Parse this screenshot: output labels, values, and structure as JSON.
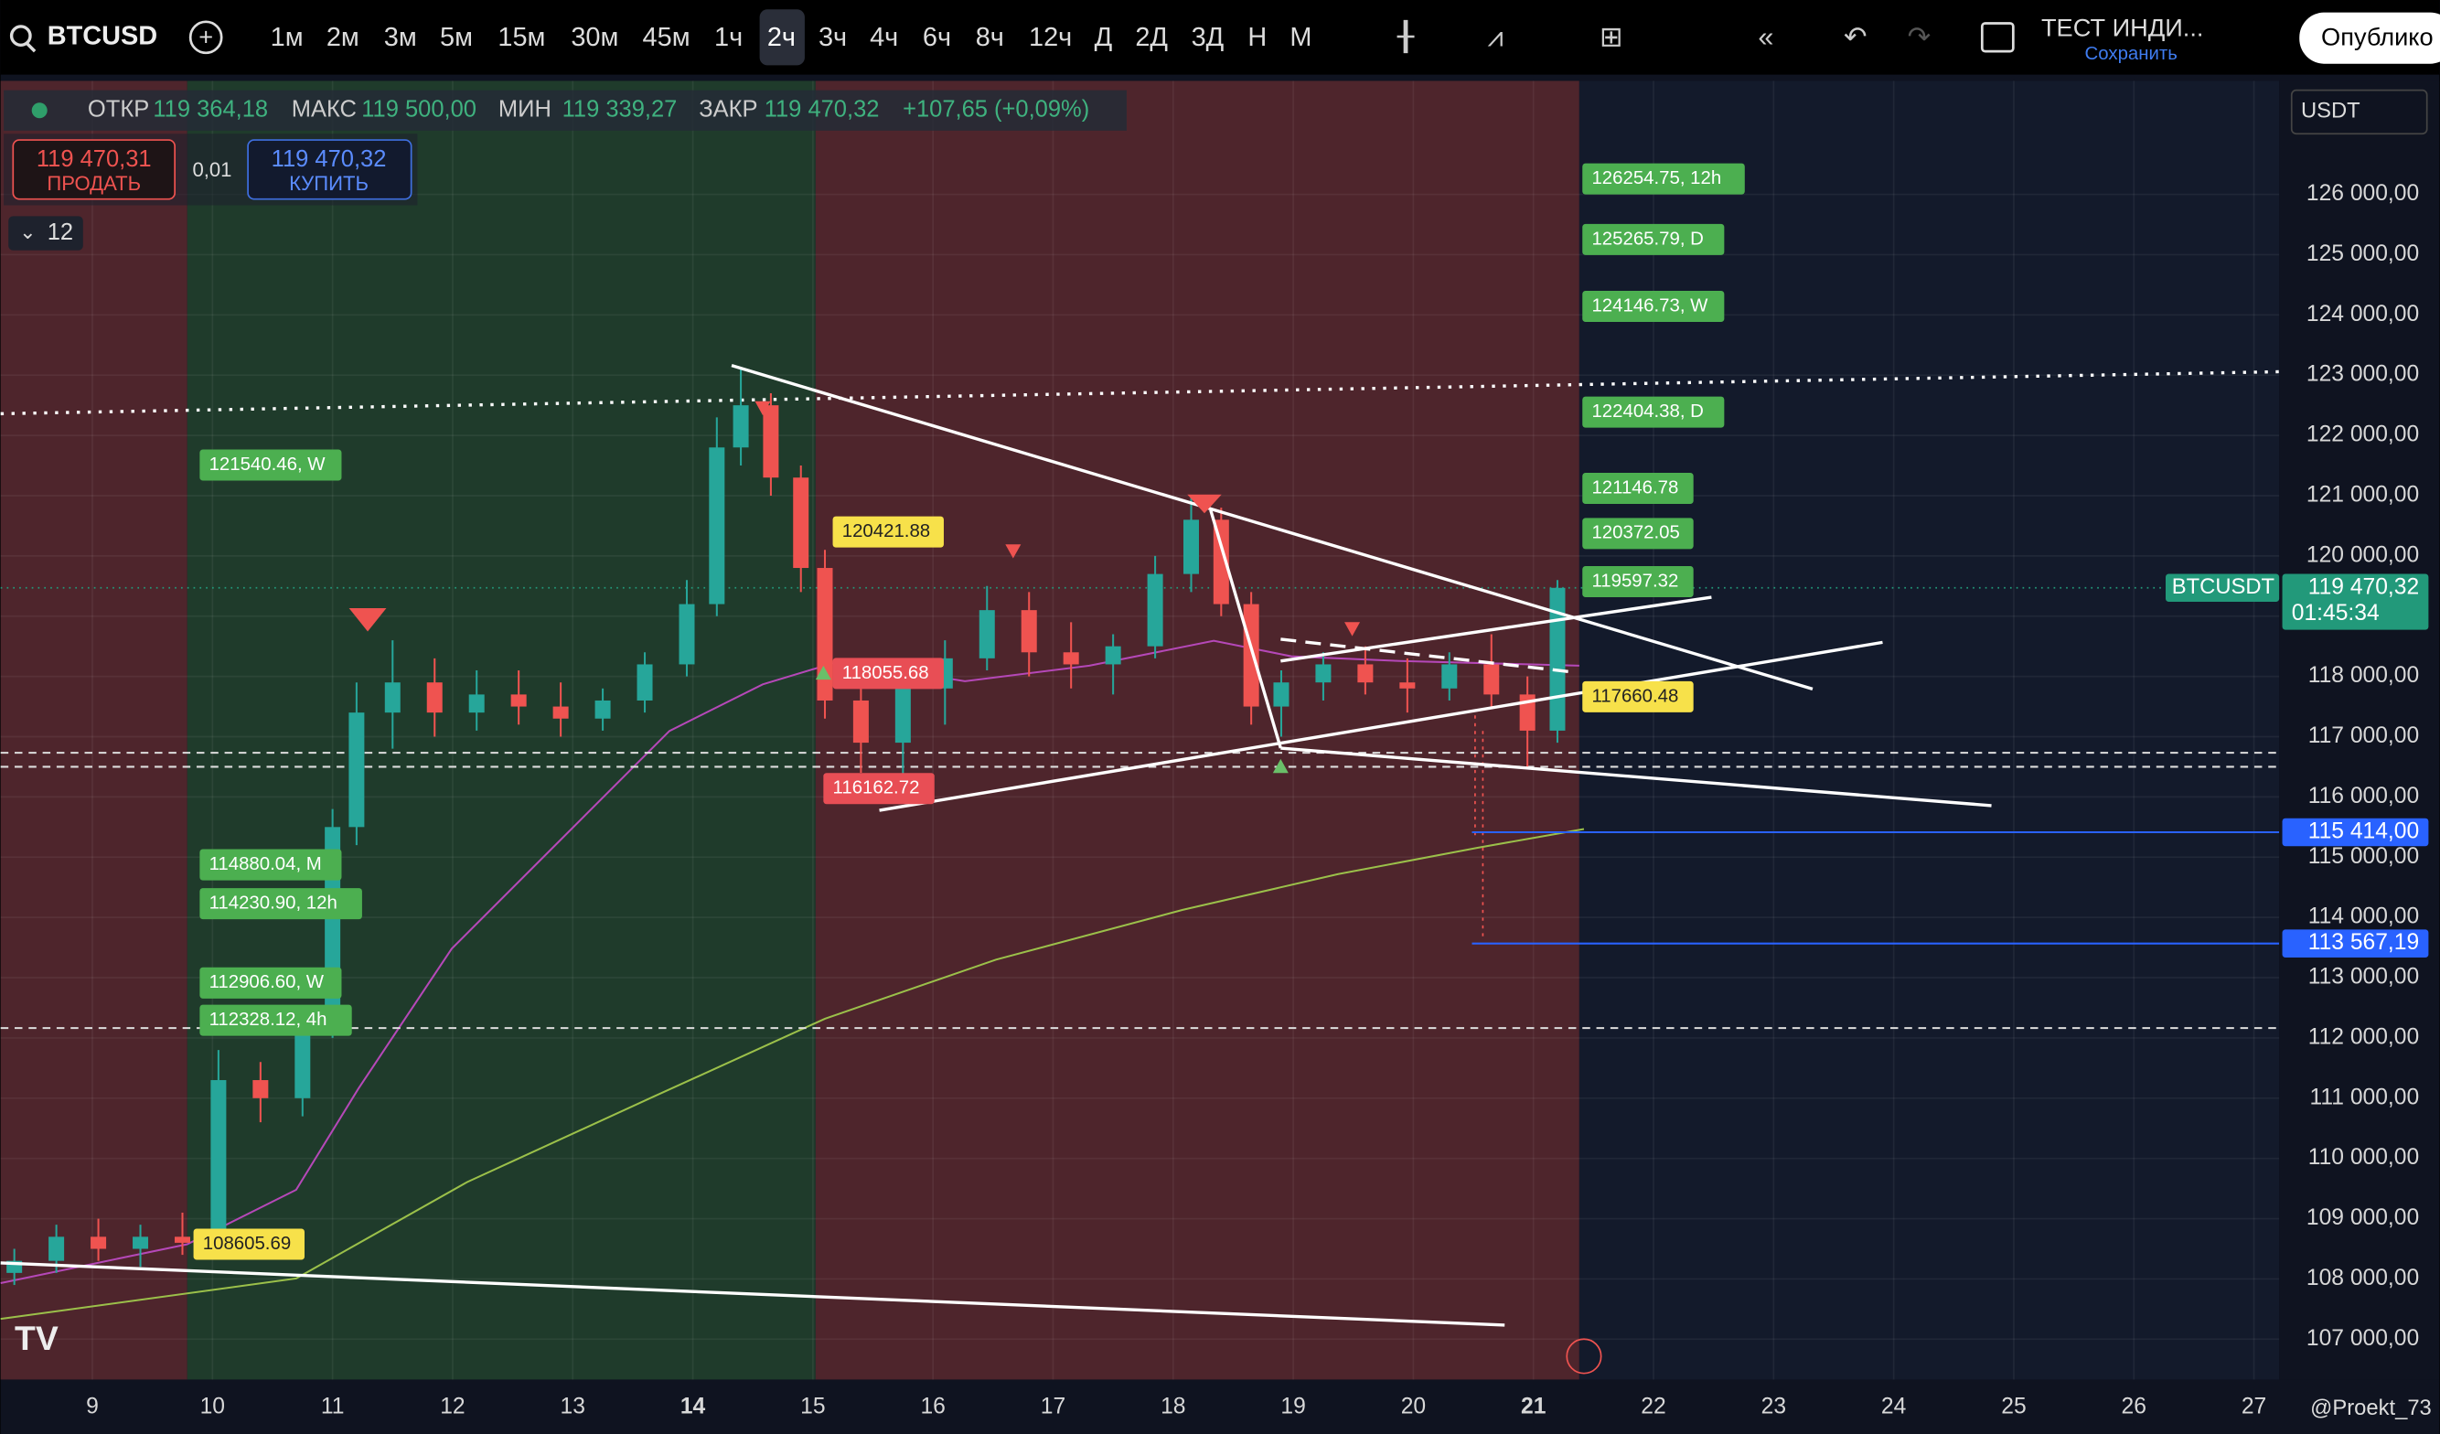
{
  "toolbar": {
    "symbol": "BTCUSD",
    "intervals": [
      "1м",
      "2м",
      "3м",
      "5м",
      "15м",
      "30м",
      "45м",
      "1ч",
      "2ч",
      "3ч",
      "4ч",
      "6ч",
      "8ч",
      "12ч",
      "Д",
      "2Д",
      "3Д",
      "Н",
      "М"
    ],
    "layout_name": "ТЕСТ ИНДИ...",
    "save": "Сохранить",
    "publish": "Опублико"
  },
  "legend": {
    "open_label": "ОТКР",
    "open": "119 364,18",
    "high_label": "МАКС",
    "high": "119 500,00",
    "low_label": "МИН",
    "low": "119 339,27",
    "close_label": "ЗАКР",
    "close": "119 470,32",
    "change": "+107,65 (+0,09%)"
  },
  "trade": {
    "sell_price": "119 470,31",
    "sell": "ПРОДАТЬ",
    "spread": "0,01",
    "buy_price": "119 470,32",
    "buy": "КУПИТЬ"
  },
  "indicator_count": "12",
  "currency": "USDT",
  "price_labels": [
    "126254.75, 12h",
    "125265.79, D",
    "124146.73, W",
    "122404.38, D",
    "121146.78",
    "120372.05",
    "119597.32",
    "117660.48",
    "121540.46, W",
    "120421.88",
    "118055.68",
    "116162.72",
    "114880.04, M",
    "114230.90, 12h",
    "112906.60, W",
    "112328.12, 4h",
    "108605.69"
  ],
  "watermark": "@Proekt_73",
  "chart_data": {
    "type": "candlestick",
    "up_color": "#26a69a",
    "down_color": "#ef5350",
    "x": [
      8.35,
      8.7,
      9.05,
      9.4,
      9.75,
      10.05,
      10.4,
      10.75,
      11.0,
      11.2,
      11.5,
      11.85,
      12.2,
      12.55,
      12.9,
      13.25,
      13.6,
      13.95,
      14.2,
      14.4,
      14.65,
      14.9,
      15.1,
      15.4,
      15.75,
      16.1,
      16.45,
      16.8,
      17.15,
      17.5,
      17.85,
      18.15,
      18.4,
      18.65,
      18.9,
      19.25,
      19.6,
      19.95,
      20.3,
      20.65,
      20.95,
      21.2
    ],
    "open": [
      108100,
      108300,
      108700,
      108500,
      108700,
      108600,
      111300,
      111000,
      112200,
      115500,
      117400,
      117900,
      117400,
      117700,
      117500,
      117300,
      117600,
      118200,
      119200,
      121800,
      122500,
      121300,
      119800,
      117600,
      116900,
      117800,
      118300,
      119100,
      118400,
      118200,
      118500,
      119700,
      120600,
      119200,
      117500,
      117900,
      118200,
      117900,
      117800,
      118200,
      117700,
      117100
    ],
    "high": [
      108500,
      108900,
      109000,
      108900,
      109100,
      111800,
      111600,
      112500,
      115800,
      117900,
      118600,
      118300,
      118100,
      118100,
      117900,
      117800,
      118400,
      119600,
      122300,
      123100,
      122700,
      121500,
      120100,
      118300,
      118200,
      118600,
      119500,
      119400,
      118900,
      118700,
      120000,
      121000,
      120800,
      119400,
      118100,
      118400,
      118500,
      118300,
      118400,
      118700,
      118000,
      119600
    ],
    "low": [
      107900,
      108100,
      108300,
      108200,
      108400,
      108500,
      110600,
      110700,
      112000,
      115200,
      116800,
      117000,
      117100,
      117200,
      117000,
      117100,
      117400,
      118000,
      119000,
      121500,
      121000,
      119400,
      117300,
      116400,
      116162,
      117200,
      118100,
      118000,
      117800,
      117700,
      118300,
      119400,
      119000,
      117200,
      117000,
      117600,
      117700,
      117400,
      117600,
      117500,
      116500,
      116900
    ],
    "close": [
      108300,
      108700,
      108500,
      108700,
      108600,
      111300,
      111000,
      112200,
      115500,
      117400,
      117900,
      117400,
      117700,
      117500,
      117300,
      117600,
      118200,
      119200,
      121800,
      122500,
      121300,
      119800,
      117600,
      116900,
      117800,
      118300,
      119100,
      118400,
      118200,
      118500,
      119700,
      120600,
      119200,
      117500,
      117900,
      118200,
      117900,
      117800,
      118200,
      117700,
      117100,
      119470
    ],
    "xlim": [
      8.236,
      27.21
    ],
    "ylim": [
      106330,
      127884
    ],
    "xticks": [
      9,
      10,
      11,
      12,
      13,
      14,
      15,
      16,
      17,
      18,
      19,
      20,
      21,
      22,
      23,
      24,
      25,
      26,
      27
    ],
    "yticks": [
      {
        "value": 107000,
        "label": "107 000,00"
      },
      {
        "value": 108000,
        "label": "108 000,00"
      },
      {
        "value": 109000,
        "label": "109 000,00"
      },
      {
        "value": 110000,
        "label": "110 000,00"
      },
      {
        "value": 111000,
        "label": "111 000,00"
      },
      {
        "value": 112000,
        "label": "112 000,00"
      },
      {
        "value": 113000,
        "label": "113 000,00"
      },
      {
        "value": 114000,
        "label": "114 000,00"
      },
      {
        "value": 115000,
        "label": "115 000,00"
      },
      {
        "value": 116000,
        "label": "116 000,00"
      },
      {
        "value": 117000,
        "label": "117 000,00"
      },
      {
        "value": 118000,
        "label": "118 000,00"
      },
      {
        "value": 119000,
        "label": "119 000,00"
      },
      {
        "value": 120000,
        "label": "120 000,00"
      },
      {
        "value": 121000,
        "label": "121 000,00"
      },
      {
        "value": 122000,
        "label": "122 000,00"
      },
      {
        "value": 123000,
        "label": "123 000,00"
      },
      {
        "value": 124000,
        "label": "124 000,00"
      },
      {
        "value": 125000,
        "label": "125 000,00"
      },
      {
        "value": 126000,
        "label": "126 000,00"
      }
    ],
    "price_lines": [
      {
        "value": 115414,
        "label": "115 414,00",
        "color": "#2962ff"
      },
      {
        "value": 113567.19,
        "label": "113 567,19",
        "color": "#2962ff"
      }
    ],
    "last_price": {
      "value": 119470.32,
      "label": "119 470,32",
      "symbol": "BTCUSDT",
      "countdown": "01:45:34",
      "color": "#22997a"
    }
  }
}
